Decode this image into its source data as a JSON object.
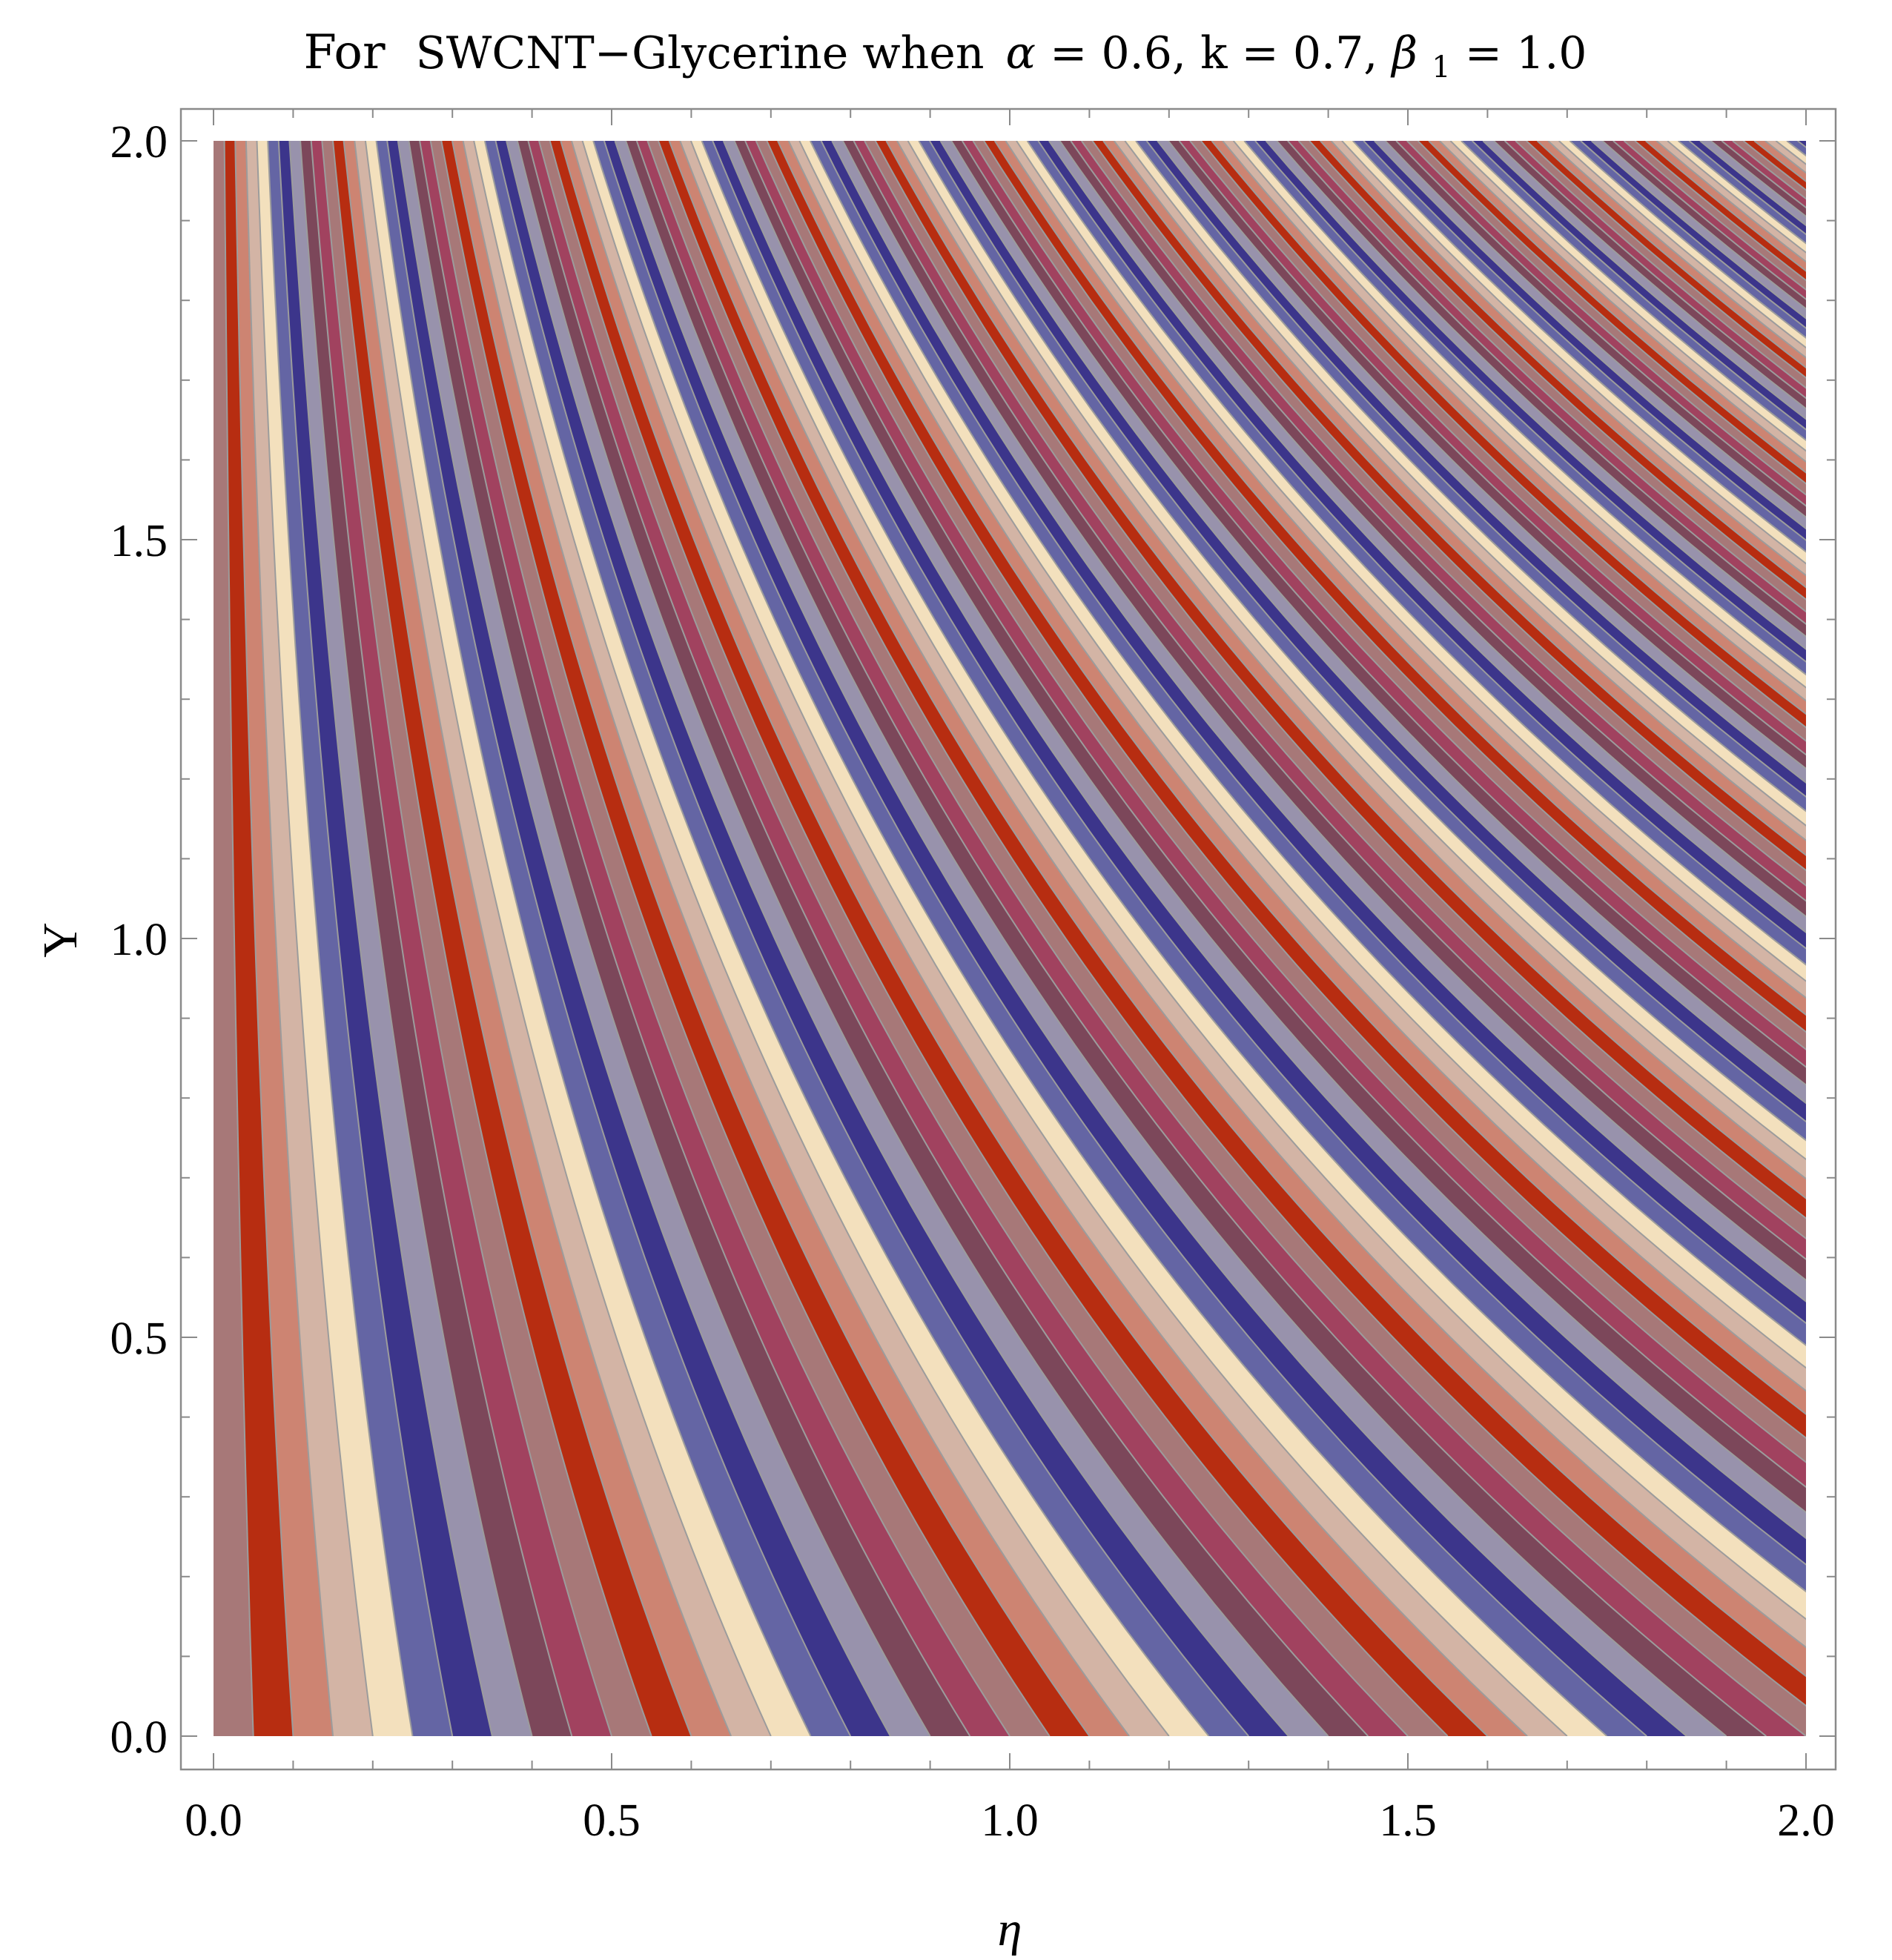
{
  "chart_data": {
    "type": "contour",
    "title": {
      "prefix": "For",
      "system": "SWCNT−Glycerine when",
      "alpha_symbol": "α",
      "alpha_value": " = 0.6, k = 0.7,",
      "beta_symbol": "β",
      "beta_subscript": "1",
      "beta_value": " = 1.0"
    },
    "xlabel": "η",
    "ylabel": "Y",
    "xlim": [
      0,
      2
    ],
    "ylim": [
      0,
      2
    ],
    "x_ticks": [
      "0.0",
      "0.5",
      "1.0",
      "1.5",
      "2.0"
    ],
    "y_ticks": [
      "0.0",
      "0.5",
      "1.0",
      "1.5",
      "2.0"
    ],
    "x_tick_values": [
      0,
      0.5,
      1.0,
      1.5,
      2.0
    ],
    "y_tick_values": [
      0,
      0.5,
      1.0,
      1.5,
      2.0
    ],
    "contour_model": "level = η · e^{0.65·Y} / 0.05, contour boundaries at integer levels",
    "level_spacing": 0.05,
    "growth_rate": 0.65,
    "palette": [
      "#a77878",
      "#b72d11",
      "#cd8472",
      "#d3b4a5",
      "#f3e0bd",
      "#6465a4",
      "#3c358b",
      "#9892ac",
      "#7c475a",
      "#a1425f"
    ],
    "contour_line_color": "#9c9c9c",
    "frame_color": "#8a8a8a"
  }
}
